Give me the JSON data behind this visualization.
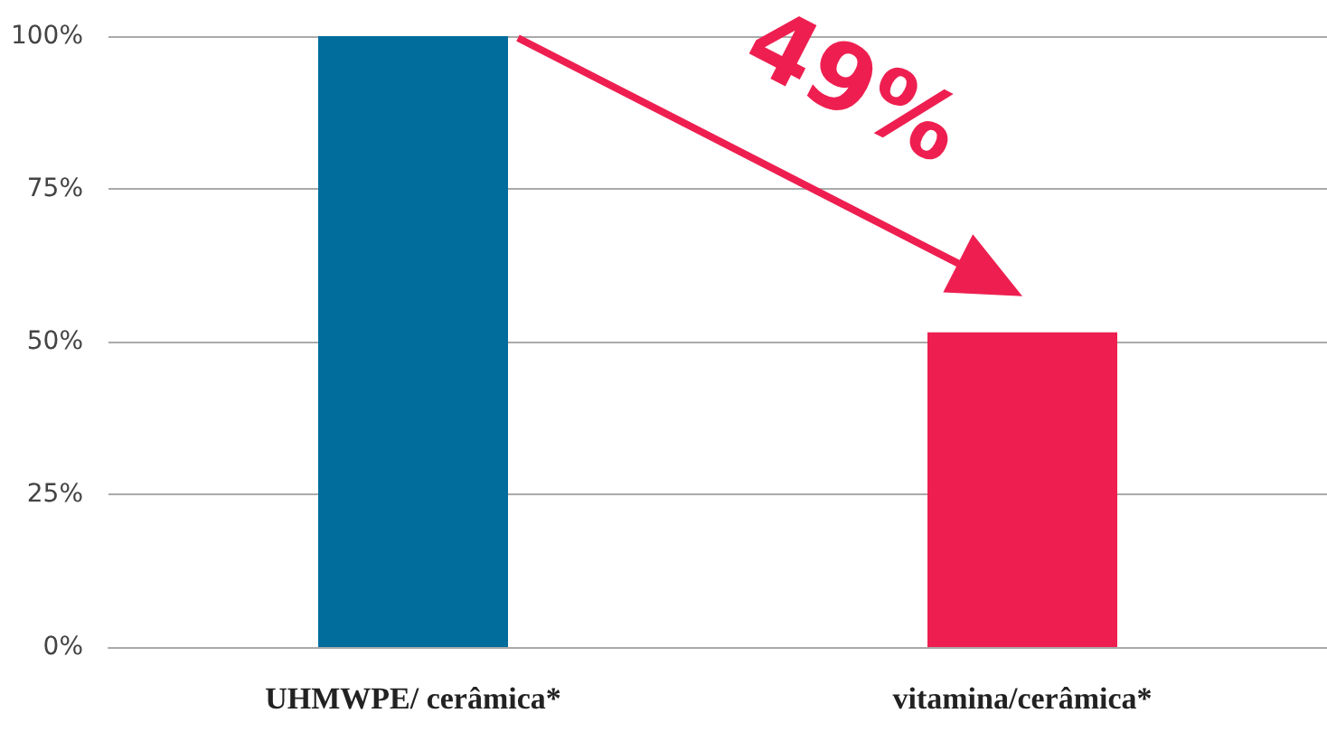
{
  "chart_data": {
    "type": "bar",
    "categories": [
      "UHMWPE/ cerâmica*",
      "vitamina/cerâmica*"
    ],
    "values": [
      100,
      51.5
    ],
    "colors": [
      "#006d9c",
      "#ee1f50"
    ],
    "ylim": [
      0,
      100
    ],
    "yticks": [
      {
        "value": 0,
        "label": "0%"
      },
      {
        "value": 25,
        "label": "25%"
      },
      {
        "value": 50,
        "label": "50%"
      },
      {
        "value": 75,
        "label": "75%"
      },
      {
        "value": 100,
        "label": "100%"
      }
    ],
    "grid": "y",
    "annotations": [
      "49%"
    ]
  }
}
